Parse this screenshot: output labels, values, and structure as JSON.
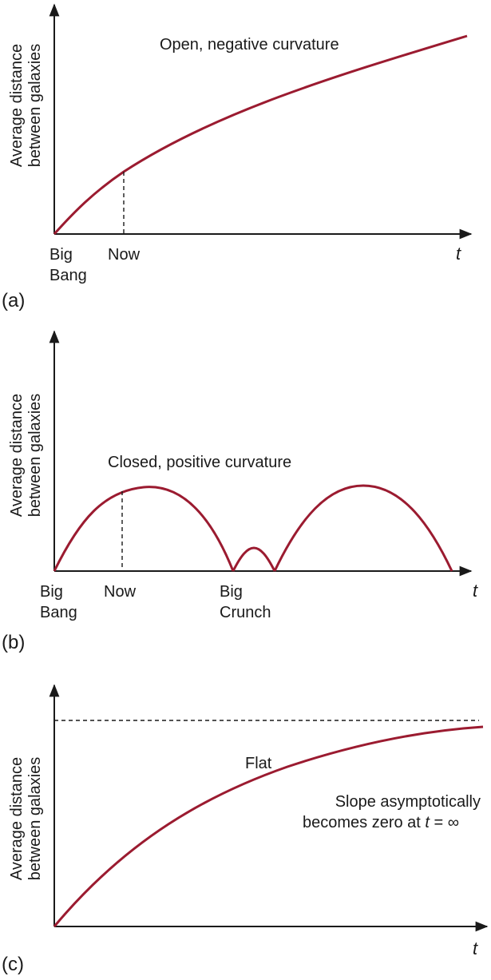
{
  "colors": {
    "curve": "#9b1b30",
    "axis": "#1a1a1a"
  },
  "y_axis_label": [
    "Average distance",
    "between galaxies"
  ],
  "t_label": "t",
  "panels": {
    "a": {
      "tag": "(a)",
      "title": "Open, negative curvature",
      "labels": {
        "big": "Big",
        "bang": "Bang",
        "now": "Now"
      }
    },
    "b": {
      "tag": "(b)",
      "title": "Closed, positive curvature",
      "labels": {
        "big": "Big",
        "bang": "Bang",
        "now": "Now",
        "big2": "Big",
        "crunch": "Crunch"
      }
    },
    "c": {
      "tag": "(c)",
      "title": "Flat",
      "note_line1": "Slope asymptotically",
      "note_line2_prefix": "becomes zero at ",
      "note_t": "t",
      "note_eq": " = ∞"
    }
  }
}
